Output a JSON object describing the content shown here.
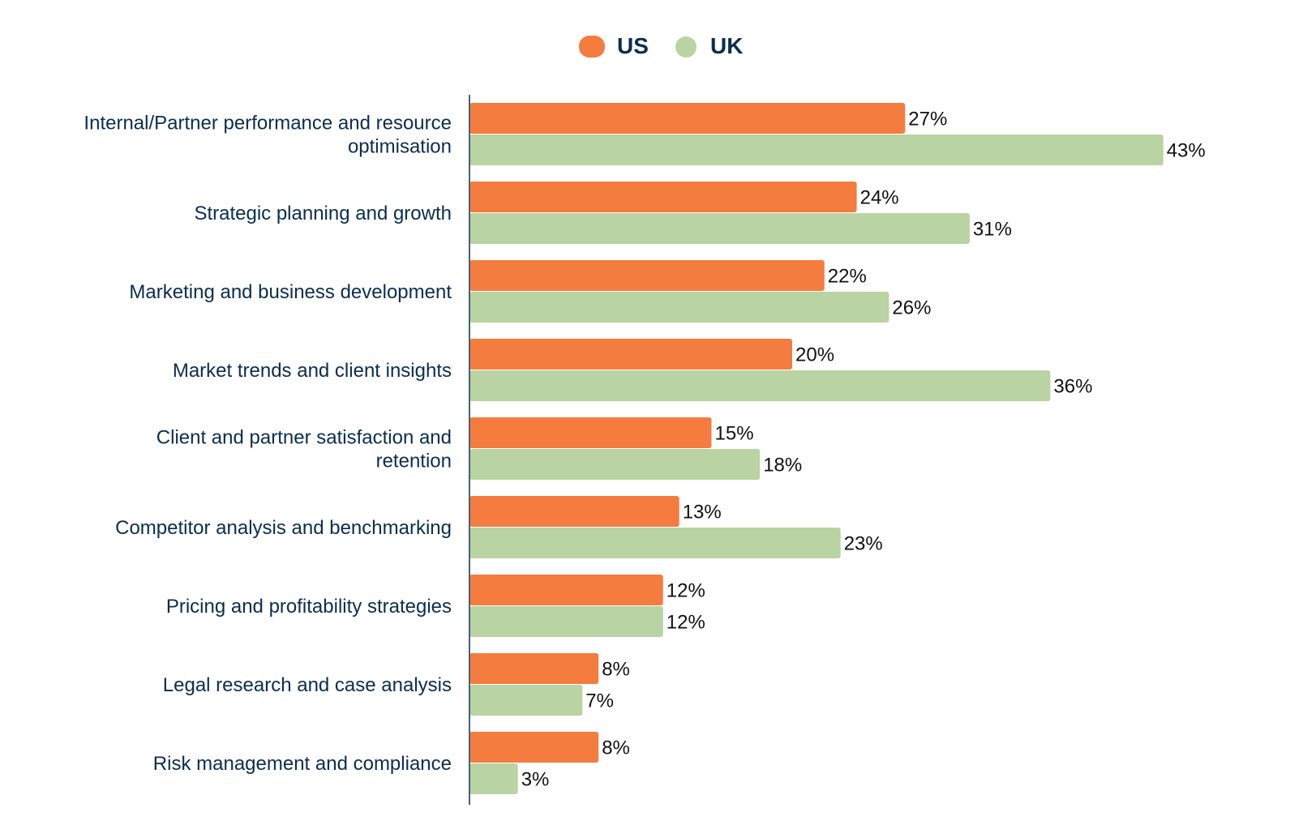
{
  "chart_data": {
    "type": "bar",
    "orientation": "horizontal",
    "title": "",
    "xlabel": "",
    "ylabel": "",
    "xlim": [
      0,
      45
    ],
    "grid": false,
    "legend_position": "top-center",
    "value_suffix": "%",
    "categories": [
      [
        "Internal/Partner performance and resource",
        "optimisation"
      ],
      [
        "Strategic planning and growth"
      ],
      [
        "Marketing and business development"
      ],
      [
        "Market trends and client insights"
      ],
      [
        "Client and partner satisfaction and",
        "retention"
      ],
      [
        "Competitor analysis and benchmarking"
      ],
      [
        "Pricing and profitability strategies"
      ],
      [
        "Legal research and case analysis"
      ],
      [
        "Risk management and compliance"
      ]
    ],
    "series": [
      {
        "name": "US",
        "color": "#f47c3f",
        "values": [
          27,
          24,
          22,
          20,
          15,
          13,
          12,
          8,
          8
        ],
        "labels": [
          "27%",
          "24%",
          "22%",
          "20%",
          "15%",
          "13%",
          "12%",
          "8%",
          "8%"
        ]
      },
      {
        "name": "UK",
        "color": "#b9d3a2",
        "values": [
          43,
          31,
          26,
          36,
          18,
          23,
          12,
          7,
          3
        ],
        "labels": [
          "43%",
          "31%",
          "26%",
          "36%",
          "18%",
          "23%",
          "12%",
          "7%",
          "3%"
        ]
      }
    ]
  },
  "colors": {
    "axis": "#4a6076",
    "category_text": "#0b2d4f",
    "value_text": "#111111"
  }
}
